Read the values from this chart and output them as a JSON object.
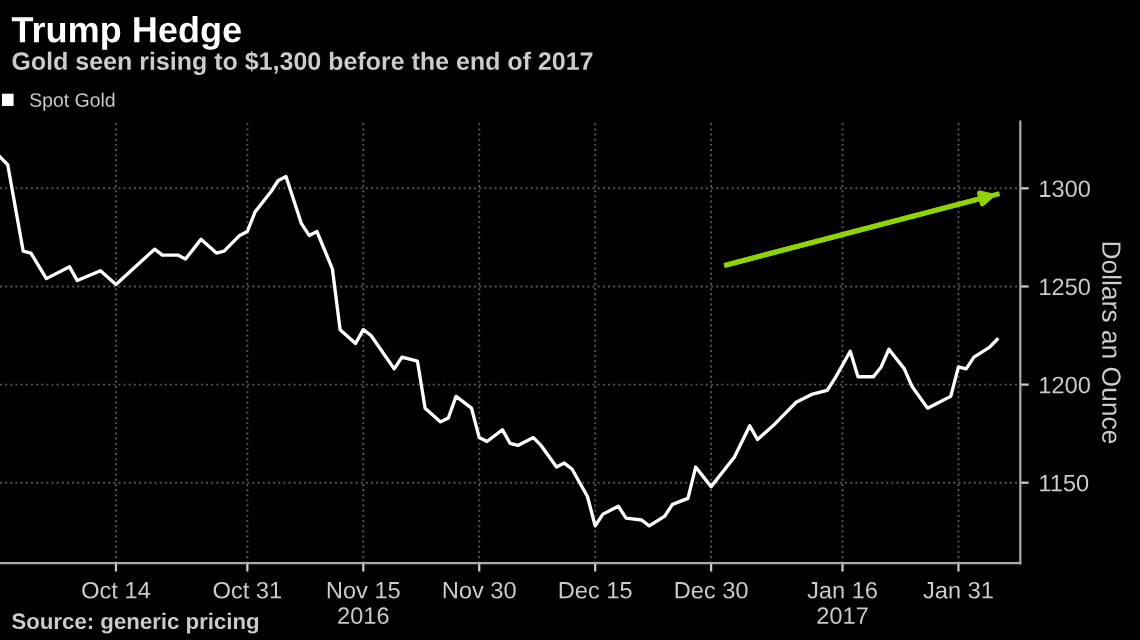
{
  "chart_data": {
    "type": "line",
    "title": "Trump Hedge",
    "subtitle": "Gold seen rising to $1,300 before the end of 2017",
    "ylabel": "Dollars an Ounce",
    "annotations": [
      "Source: generic pricing"
    ],
    "series": [
      {
        "name": "Spot Gold",
        "color": "#ffffff",
        "x": [
          "2016-09-29",
          "2016-09-30",
          "2016-10-02",
          "2016-10-03",
          "2016-10-05",
          "2016-10-08",
          "2016-10-09",
          "2016-10-12",
          "2016-10-14",
          "2016-10-19",
          "2016-10-20",
          "2016-10-22",
          "2016-10-23",
          "2016-10-25",
          "2016-10-27",
          "2016-10-28",
          "2016-10-30",
          "2016-10-31",
          "2016-11-01",
          "2016-11-03",
          "2016-11-04",
          "2016-11-05",
          "2016-11-07",
          "2016-11-08",
          "2016-11-09",
          "2016-11-11",
          "2016-11-12",
          "2016-11-14",
          "2016-11-15",
          "2016-11-16",
          "2016-11-19",
          "2016-11-20",
          "2016-11-22",
          "2016-11-23",
          "2016-11-25",
          "2016-11-26",
          "2016-11-27",
          "2016-11-29",
          "2016-11-30",
          "2016-12-01",
          "2016-12-03",
          "2016-12-04",
          "2016-12-05",
          "2016-12-07",
          "2016-12-08",
          "2016-12-10",
          "2016-12-11",
          "2016-12-12",
          "2016-12-14",
          "2016-12-15",
          "2016-12-16",
          "2016-12-18",
          "2016-12-19",
          "2016-12-21",
          "2016-12-22",
          "2016-12-24",
          "2016-12-25",
          "2016-12-27",
          "2016-12-28",
          "2016-12-30",
          "2017-01-01",
          "2017-01-02",
          "2017-01-04",
          "2017-01-05",
          "2017-01-07",
          "2017-01-09",
          "2017-01-10",
          "2017-01-12",
          "2017-01-14",
          "2017-01-15",
          "2017-01-17",
          "2017-01-18",
          "2017-01-20",
          "2017-01-21",
          "2017-01-22",
          "2017-01-24",
          "2017-01-25",
          "2017-01-27",
          "2017-01-28",
          "2017-01-30",
          "2017-01-31",
          "2017-02-01",
          "2017-02-02",
          "2017-02-04",
          "2017-02-05"
        ],
        "values": [
          1316,
          1312,
          1268,
          1267,
          1254,
          1260,
          1253,
          1258,
          1251,
          1269,
          1266,
          1266,
          1264,
          1274,
          1267,
          1268,
          1276,
          1278,
          1288,
          1298,
          1304,
          1306,
          1282,
          1276,
          1278,
          1259,
          1228,
          1221,
          1228,
          1225,
          1208,
          1214,
          1212,
          1188,
          1181,
          1183,
          1194,
          1188,
          1173,
          1171,
          1177,
          1170,
          1169,
          1173,
          1169,
          1158,
          1160,
          1157,
          1143,
          1128,
          1134,
          1138,
          1132,
          1131,
          1128,
          1133,
          1139,
          1142,
          1158,
          1148,
          1158,
          1163,
          1179,
          1172,
          1179,
          1187,
          1191,
          1195,
          1197,
          1203,
          1217,
          1204,
          1204,
          1209,
          1218,
          1208,
          1199,
          1188,
          1190,
          1194,
          1209,
          1208,
          1214,
          1219,
          1223
        ]
      },
      {
        "type": "line",
        "color": "#8fd400",
        "x": [
          "2017-01-01",
          "2017-02-05"
        ],
        "values": [
          1261,
          1297
        ]
      }
    ],
    "xlim": [
      "2016-09-29",
      "2017-02-08"
    ],
    "ylim": [
      1109,
      1334
    ],
    "xticks": [
      {
        "value": "2016-10-14",
        "label": "Oct 14"
      },
      {
        "value": "2016-10-31",
        "label": "Oct 31"
      },
      {
        "value": "2016-11-15",
        "label": "Nov 15\n2016"
      },
      {
        "value": "2016-11-30",
        "label": "Nov 30"
      },
      {
        "value": "2016-12-15",
        "label": "Dec 15"
      },
      {
        "value": "2016-12-30",
        "label": "Dec 30"
      },
      {
        "value": "2017-01-16",
        "label": "Jan 16\n2017"
      },
      {
        "value": "2017-01-31",
        "label": "Jan 31"
      }
    ],
    "yticks": [
      1150,
      1200,
      1250,
      1300
    ],
    "grid": true,
    "legend": "top left"
  }
}
